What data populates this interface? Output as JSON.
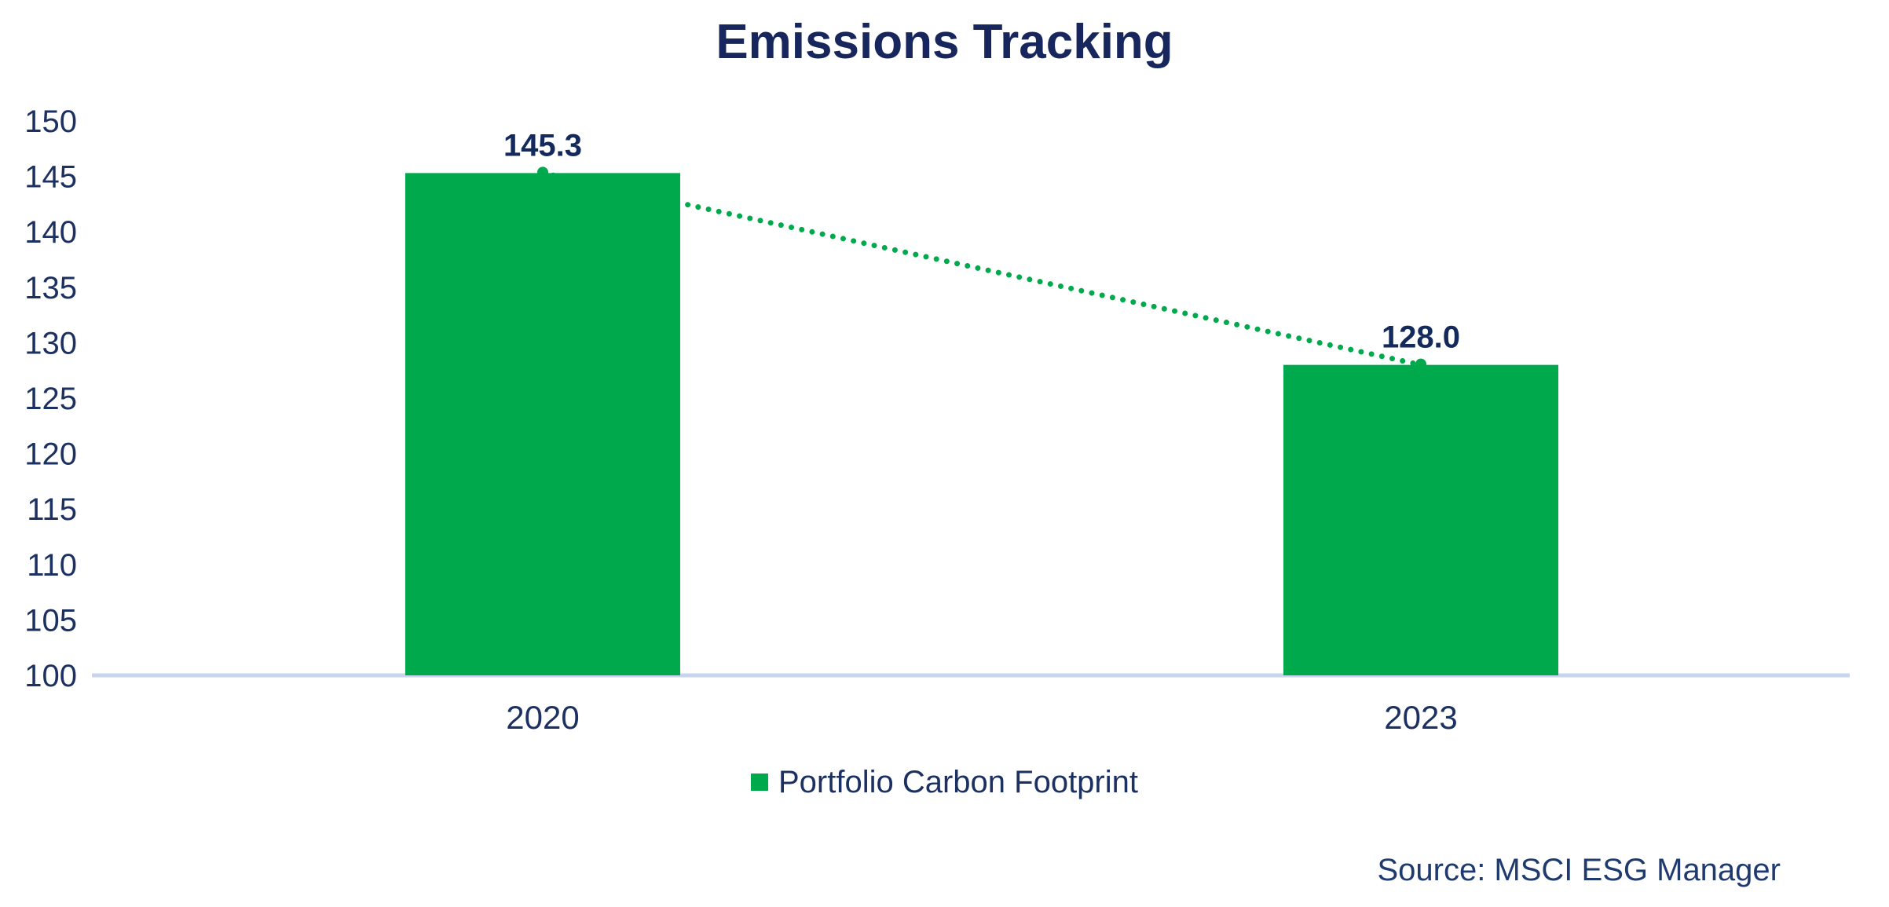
{
  "header": {
    "title": "Emissions Tracking"
  },
  "legend": {
    "items": [
      {
        "label": "Portfolio Carbon Footprint",
        "swatch_color": "#00A94C"
      }
    ]
  },
  "footer": {
    "source": "Source: MSCI ESG Manager"
  },
  "colors": {
    "title_navy": "#17265C",
    "axis_navy": "#1C3061",
    "data_label_navy": "#152A5C",
    "source_navy": "#1E3A6E",
    "series_green": "#00A94C",
    "baseline_blue": "#C7D5EE",
    "background": "#FFFFFF"
  },
  "chart_data": {
    "type": "bar",
    "title": "Emissions Tracking",
    "categories": [
      "2020",
      "2023"
    ],
    "series": [
      {
        "name": "Portfolio Carbon Footprint",
        "type": "bar",
        "values": [
          145.3,
          128.0
        ],
        "data_labels": [
          "145.3",
          "128.0"
        ],
        "color": "#00A94C"
      },
      {
        "name": "trend-line",
        "type": "dotted-line",
        "values": [
          145.3,
          128.0
        ],
        "color": "#00A94C"
      }
    ],
    "xlabel": "",
    "ylabel": "",
    "ylim": [
      100,
      150
    ],
    "yticks": [
      100,
      105,
      110,
      115,
      120,
      125,
      130,
      135,
      140,
      145,
      150
    ],
    "gridlines": false,
    "axis_line": "bottom-only",
    "legend_position": "bottom-center",
    "source": "Source: MSCI ESG Manager"
  }
}
